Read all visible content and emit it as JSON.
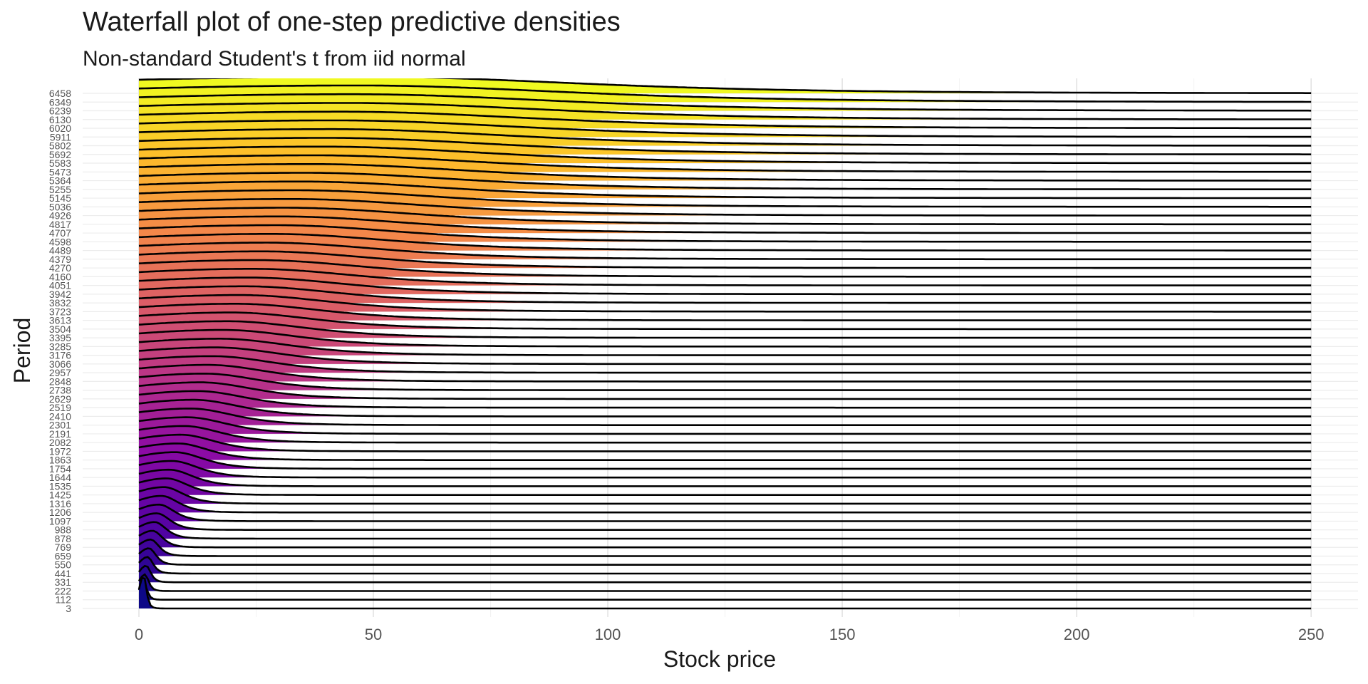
{
  "chart_data": {
    "type": "ridgeline",
    "title": "Waterfall plot of one-step predictive densities",
    "subtitle": "Non-standard Student's t from iid normal",
    "xlabel": "Stock price",
    "ylabel": "Period",
    "xlim": [
      -12,
      260
    ],
    "x_ticks": [
      0,
      50,
      100,
      150,
      200,
      250
    ],
    "x_range_drawn": [
      0,
      250
    ],
    "grid": true,
    "colormap": "plasma",
    "periods": [
      3,
      112,
      222,
      331,
      441,
      550,
      659,
      769,
      878,
      988,
      1097,
      1206,
      1316,
      1425,
      1535,
      1644,
      1754,
      1863,
      1972,
      2082,
      2191,
      2301,
      2410,
      2519,
      2629,
      2738,
      2848,
      2957,
      3066,
      3176,
      3285,
      3395,
      3504,
      3613,
      3723,
      3832,
      3942,
      4051,
      4160,
      4270,
      4379,
      4489,
      4598,
      4707,
      4817,
      4926,
      5036,
      5145,
      5255,
      5364,
      5473,
      5583,
      5692,
      5802,
      5911,
      6020,
      6130,
      6239,
      6349,
      6458
    ],
    "density_mode_first": 1,
    "density_mode_last": 48,
    "density_scale_first": 0.6,
    "density_scale_last": 48,
    "student_t_df": 4
  }
}
